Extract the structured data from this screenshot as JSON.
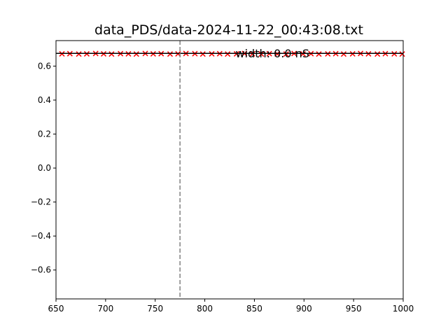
{
  "chart_data": {
    "type": "scatter",
    "title": "data_PDS/data-2024-11-22_00:43:08.txt",
    "xlabel": "",
    "ylabel": "",
    "xlim": [
      650,
      1000
    ],
    "ylim": [
      -0.77,
      0.75
    ],
    "x_ticks": [
      650,
      700,
      750,
      800,
      850,
      900,
      950,
      1000
    ],
    "x_tick_labels": [
      "650",
      "700",
      "750",
      "800",
      "850",
      "900",
      "950",
      "1000"
    ],
    "y_ticks": [
      -0.6,
      -0.4,
      -0.2,
      0.0,
      0.2,
      0.4,
      0.6
    ],
    "y_tick_labels": [
      "−0.6",
      "−0.4",
      "−0.2",
      "0.0",
      "0.2",
      "0.4",
      "0.6"
    ],
    "grid": false,
    "series": [
      {
        "marker": "x",
        "color": "#ff0000",
        "x": [
          656,
          664,
          673,
          681,
          690,
          698,
          706,
          715,
          723,
          731,
          740,
          748,
          756,
          765,
          773,
          781,
          790,
          798,
          807,
          815,
          823,
          832,
          840,
          848,
          857,
          865,
          873,
          882,
          890,
          899,
          907,
          915,
          924,
          932,
          940,
          949,
          957,
          965,
          974,
          982,
          991,
          999
        ],
        "y": [
          0.672,
          0.673,
          0.671,
          0.672,
          0.674,
          0.672,
          0.671,
          0.673,
          0.672,
          0.671,
          0.674,
          0.672,
          0.673,
          0.671,
          0.672,
          0.674,
          0.673,
          0.671,
          0.672,
          0.673,
          0.671,
          0.672,
          0.674,
          0.672,
          0.671,
          0.673,
          0.672,
          0.671,
          0.674,
          0.672,
          0.673,
          0.671,
          0.672,
          0.673,
          0.671,
          0.672,
          0.674,
          0.672,
          0.671,
          0.673,
          0.672,
          0.671
        ]
      }
    ],
    "reference_lines": [
      {
        "orientation": "horizontal",
        "value": 0.675,
        "color": "#000000",
        "style": "solid"
      },
      {
        "orientation": "vertical",
        "value": 775,
        "color": "#808080",
        "style": "dashed"
      }
    ],
    "annotation": {
      "text": "width: 0.0 nS",
      "x": 831,
      "y": 0.671
    }
  }
}
